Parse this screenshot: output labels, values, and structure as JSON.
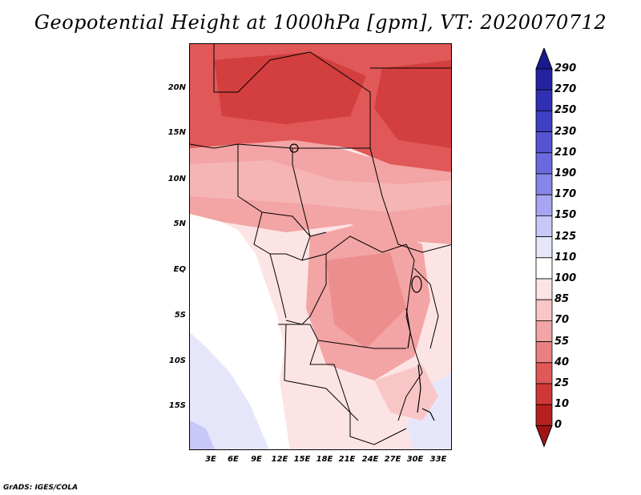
{
  "title": "Geopotential Height at 1000hPa [gpm], VT: 2020070712",
  "credit": "GrADS: IGES/COLA",
  "map": {
    "region": "Central and Southern Africa",
    "lat_range": [
      -20,
      25
    ],
    "lon_range": [
      0,
      35
    ],
    "lat_ticks": [
      "20N",
      "15N",
      "10N",
      "5N",
      "EQ",
      "5S",
      "10S",
      "15S"
    ],
    "lon_ticks": [
      "3E",
      "6E",
      "9E",
      "12E",
      "15E",
      "18E",
      "21E",
      "24E",
      "27E",
      "30E",
      "33E"
    ]
  },
  "colorbar": {
    "labels": [
      "290",
      "270",
      "250",
      "230",
      "210",
      "190",
      "170",
      "150",
      "125",
      "110",
      "100",
      "85",
      "70",
      "55",
      "40",
      "25",
      "10",
      "0"
    ],
    "colors": [
      "#1a1a8f",
      "#2323a0",
      "#3030b4",
      "#4040c4",
      "#5555d4",
      "#6a6ae0",
      "#8585ea",
      "#a5a5f2",
      "#c8c8f8",
      "#e6e6fb",
      "#ffffff",
      "#fde4e4",
      "#f9c6c6",
      "#f3a4a4",
      "#ea8080",
      "#e05858",
      "#d03838",
      "#b82020",
      "#a01414"
    ]
  }
}
